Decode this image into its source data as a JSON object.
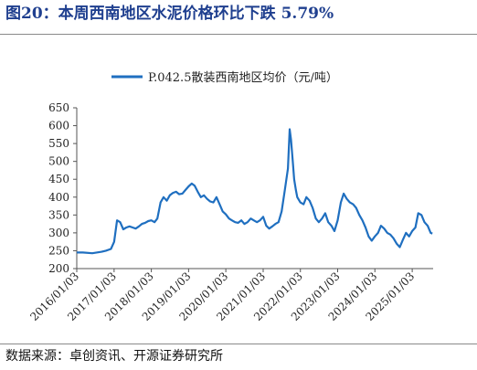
{
  "figure": {
    "title": "图20：本周西南地区水泥价格环比下跌 5.79%",
    "source": "数据来源：卓创资讯、开源证券研究所"
  },
  "chart_data": {
    "type": "line",
    "legend": "top-center",
    "grid": false,
    "line_color": "#1f6fc0",
    "series": [
      {
        "name": "P.042.5散装西南地区均价（元/吨）",
        "x": [
          "2016-01-03",
          "2016-03-03",
          "2016-06-03",
          "2016-09-03",
          "2016-10-15",
          "2016-12-03",
          "2017-01-03",
          "2017-02-01",
          "2017-03-03",
          "2017-04-03",
          "2017-05-03",
          "2017-06-03",
          "2017-07-03",
          "2017-08-03",
          "2017-09-03",
          "2017-10-03",
          "2017-11-03",
          "2017-12-03",
          "2018-01-03",
          "2018-02-03",
          "2018-03-03",
          "2018-04-03",
          "2018-05-03",
          "2018-06-03",
          "2018-07-03",
          "2018-08-03",
          "2018-09-03",
          "2018-10-03",
          "2018-11-03",
          "2018-12-03",
          "2019-01-03",
          "2019-02-03",
          "2019-03-03",
          "2019-04-03",
          "2019-05-03",
          "2019-06-03",
          "2019-07-03",
          "2019-08-03",
          "2019-09-03",
          "2019-10-03",
          "2019-11-03",
          "2019-12-03",
          "2020-01-03",
          "2020-02-03",
          "2020-03-03",
          "2020-04-03",
          "2020-05-03",
          "2020-06-03",
          "2020-07-03",
          "2020-08-03",
          "2020-09-03",
          "2020-10-03",
          "2020-11-03",
          "2020-12-03",
          "2021-01-03",
          "2021-02-03",
          "2021-03-03",
          "2021-04-03",
          "2021-05-03",
          "2021-06-03",
          "2021-07-03",
          "2021-08-03",
          "2021-09-03",
          "2021-09-20",
          "2021-10-03",
          "2021-10-20",
          "2021-11-03",
          "2021-11-20",
          "2021-12-03",
          "2022-01-03",
          "2022-02-03",
          "2022-03-03",
          "2022-04-03",
          "2022-05-03",
          "2022-06-03",
          "2022-07-03",
          "2022-08-03",
          "2022-09-03",
          "2022-10-03",
          "2022-11-03",
          "2022-12-03",
          "2023-01-03",
          "2023-02-03",
          "2023-03-03",
          "2023-04-03",
          "2023-05-03",
          "2023-06-03",
          "2023-07-03",
          "2023-08-03",
          "2023-09-03",
          "2023-10-03",
          "2023-11-03",
          "2023-12-03",
          "2024-01-03",
          "2024-02-03",
          "2024-03-03",
          "2024-04-03",
          "2024-05-03",
          "2024-06-03",
          "2024-07-03",
          "2024-08-03",
          "2024-09-03",
          "2024-10-03",
          "2024-11-03",
          "2024-12-03",
          "2025-01-03",
          "2025-02-03",
          "2025-03-03",
          "2025-04-03",
          "2025-05-03",
          "2025-06-03",
          "2025-07-03",
          "2025-07-20"
        ],
        "y": [
          245,
          245,
          243,
          247,
          250,
          255,
          275,
          335,
          330,
          310,
          315,
          318,
          315,
          312,
          318,
          325,
          328,
          333,
          335,
          330,
          340,
          385,
          400,
          390,
          405,
          412,
          415,
          408,
          410,
          420,
          430,
          438,
          432,
          415,
          400,
          405,
          395,
          388,
          385,
          400,
          380,
          360,
          352,
          340,
          335,
          330,
          328,
          335,
          325,
          330,
          340,
          335,
          330,
          335,
          345,
          320,
          312,
          318,
          325,
          330,
          360,
          420,
          480,
          590,
          560,
          500,
          450,
          420,
          400,
          385,
          380,
          400,
          390,
          370,
          340,
          330,
          340,
          355,
          330,
          320,
          305,
          335,
          385,
          410,
          395,
          385,
          380,
          370,
          350,
          335,
          315,
          290,
          278,
          290,
          300,
          320,
          312,
          300,
          295,
          285,
          270,
          260,
          280,
          300,
          290,
          305,
          315,
          355,
          350,
          330,
          320,
          300,
          298
        ]
      }
    ],
    "xlim": [
      "2016-01-03",
      "2025-07-27"
    ],
    "xticks": [
      "2016/01/03",
      "2017/01/03",
      "2018/01/03",
      "2019/01/03",
      "2020/01/03",
      "2021/01/03",
      "2022/01/03",
      "2023/01/03",
      "2024/01/03",
      "2025/01/03"
    ],
    "ylim": [
      200,
      650
    ],
    "yticks": [
      200,
      250,
      300,
      350,
      400,
      450,
      500,
      550,
      600,
      650
    ]
  }
}
